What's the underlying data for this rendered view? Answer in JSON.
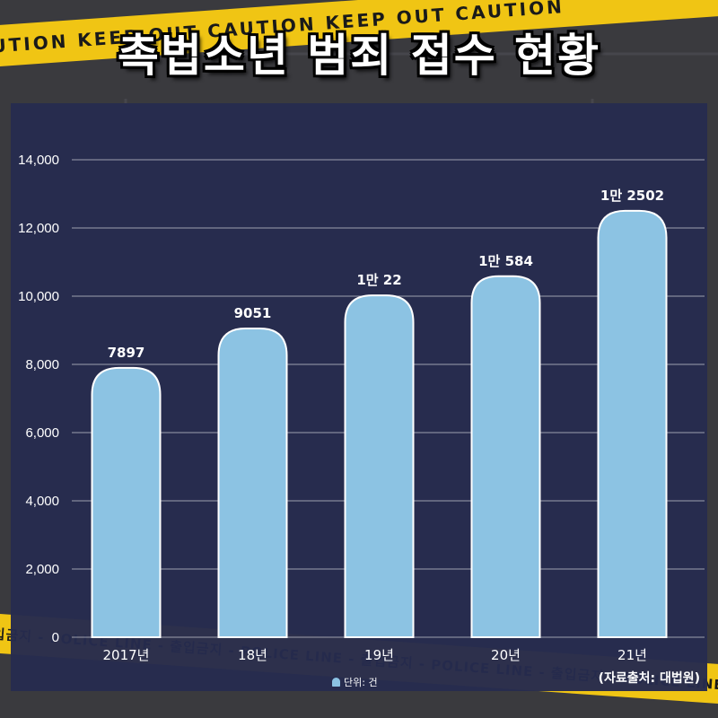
{
  "title": "촉법소년 범죄 접수 현황",
  "source": "(자료출처: 대법원)",
  "legend": {
    "label": "단위: 건"
  },
  "colors": {
    "bar": "#8cc3e3",
    "panel": "#262b4e",
    "tape": "#f0c514"
  },
  "chart_data": {
    "type": "bar",
    "title": "촉법소년 범죄 접수 현황",
    "categories": [
      "2017년",
      "18년",
      "19년",
      "20년",
      "21년"
    ],
    "values": [
      7897,
      9051,
      10022,
      10584,
      12502
    ],
    "data_labels": [
      "7897",
      "9051",
      "1만 22",
      "1만 584",
      "1만 2502"
    ],
    "y_ticks": [
      "0",
      "2,000",
      "4,000",
      "6,000",
      "8,000",
      "10,000",
      "12,000",
      "14,000"
    ],
    "ylim": [
      0,
      14000
    ],
    "grid": true,
    "legend_position": "bottom-center",
    "unit": "단위: 건"
  }
}
